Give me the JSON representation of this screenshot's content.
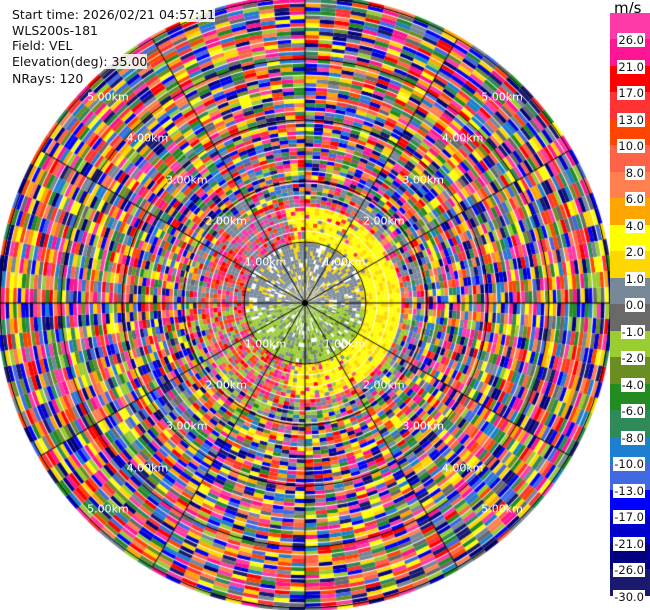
{
  "info": {
    "start_time": "Start time: 2026/02/21 04:57:11",
    "instrument": "WLS200s-181",
    "field": "Field: VEL",
    "elevation": "Elevation(deg): 35.00",
    "nrays": "NRays: 120"
  },
  "chart_data": {
    "type": "heatmap",
    "projection": "polar-ppi",
    "field": "VEL",
    "units": "m/s",
    "n_rays": 120,
    "elevation_deg": 35.0,
    "range_rings_km": [
      1,
      2,
      3,
      4,
      5
    ],
    "range_labels": [
      "1.00km",
      "2.00km",
      "3.00km",
      "4.00km",
      "5.00km"
    ],
    "colorbar": {
      "label": "m/s",
      "ticks": [
        "26.0",
        "21.0",
        "17.0",
        "13.0",
        "10.0",
        "8.0",
        "6.0",
        "4.0",
        "2.0",
        "1.0",
        "0.0",
        "-1.0",
        "-2.0",
        "-4.0",
        "-6.0",
        "-8.0",
        "-10.0",
        "-13.0",
        "-17.0",
        "-21.0",
        "-26.0",
        "-30.0"
      ],
      "colors": [
        "#ff3aa8",
        "#ff1493",
        "#ff0000",
        "#ff3333",
        "#ff4500",
        "#ff6347",
        "#ff7f50",
        "#ffa500",
        "#ffff00",
        "#ffd700",
        "#778899",
        "#696969",
        "#9acd32",
        "#6b8e23",
        "#228b22",
        "#2e8b57",
        "#1e7fd0",
        "#4169e1",
        "#0000ff",
        "#0000cd",
        "#000080",
        "#191970"
      ]
    }
  }
}
